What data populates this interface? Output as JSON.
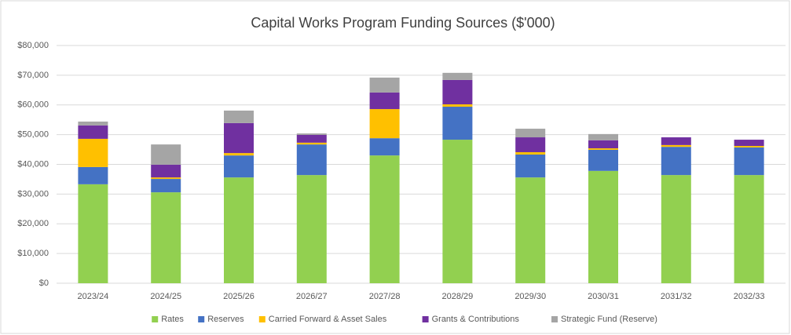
{
  "chart_data": {
    "type": "bar",
    "stacked": true,
    "title": "Capital Works Program Funding Sources ($'000)",
    "categories": [
      "2023/24",
      "2024/25",
      "2025/26",
      "2026/27",
      "2027/28",
      "2028/29",
      "2029/30",
      "2030/31",
      "2031/32",
      "2032/33"
    ],
    "series": [
      {
        "name": "Rates",
        "color": "#92d050",
        "values": [
          33300,
          30600,
          35600,
          36400,
          43000,
          48300,
          35600,
          37800,
          36400,
          36400
        ]
      },
      {
        "name": "Reserves",
        "color": "#4472c4",
        "values": [
          5800,
          4500,
          7400,
          10300,
          5800,
          11100,
          7700,
          7100,
          9500,
          9300
        ]
      },
      {
        "name": "Carried Forward & Asset Sales",
        "color": "#ffc000",
        "values": [
          9500,
          500,
          800,
          600,
          9800,
          800,
          800,
          500,
          600,
          500
        ]
      },
      {
        "name": "Grants & Contributions",
        "color": "#7030a0",
        "values": [
          4500,
          4300,
          10100,
          2600,
          5600,
          8200,
          5000,
          2700,
          2600,
          2100
        ]
      },
      {
        "name": "Strategic Fund (Reserve)",
        "color": "#a5a5a5",
        "values": [
          1300,
          6800,
          4200,
          500,
          5000,
          2400,
          2900,
          2100,
          0,
          0
        ]
      }
    ],
    "ylim": [
      0,
      80000
    ],
    "yticks": [
      {
        "value": 0,
        "label": "$0"
      },
      {
        "value": 10000,
        "label": "$10,000"
      },
      {
        "value": 20000,
        "label": "$20,000"
      },
      {
        "value": 30000,
        "label": "$30,000"
      },
      {
        "value": 40000,
        "label": "$40,000"
      },
      {
        "value": 50000,
        "label": "$50,000"
      },
      {
        "value": 60000,
        "label": "$60,000"
      },
      {
        "value": 70000,
        "label": "$70,000"
      },
      {
        "value": 80000,
        "label": "$80,000"
      }
    ],
    "grid": true,
    "legend": "bottom"
  }
}
